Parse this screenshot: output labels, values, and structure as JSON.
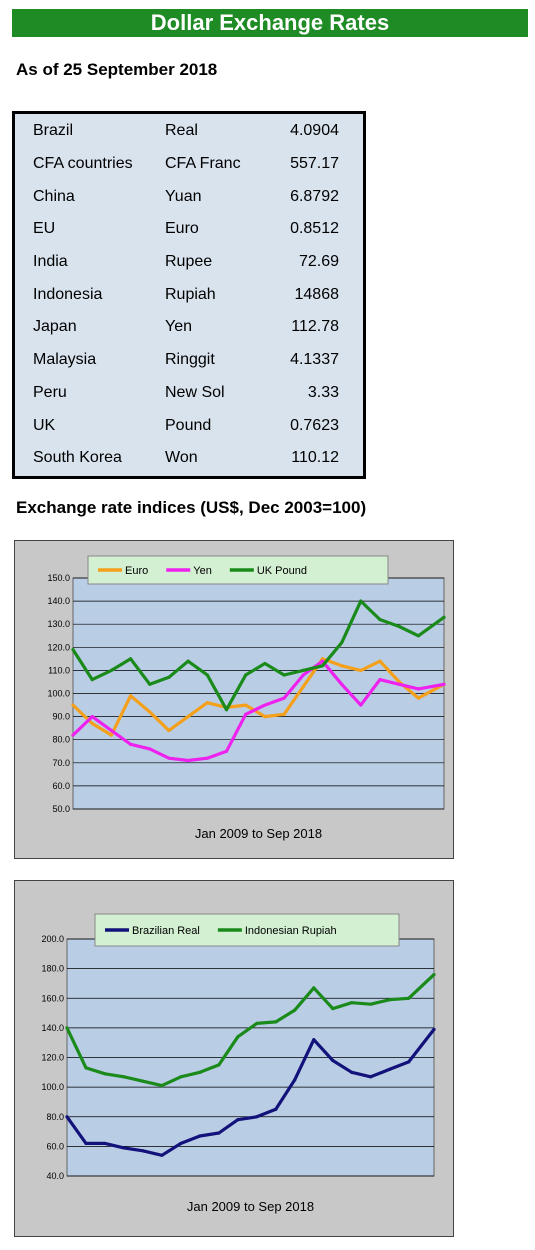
{
  "header": {
    "title": "Dollar Exchange Rates",
    "as_of": "As of 25 September 2018"
  },
  "rates": [
    {
      "country": "Brazil",
      "currency": "Real",
      "rate": "4.0904"
    },
    {
      "country": "CFA countries",
      "currency": "CFA Franc",
      "rate": "557.17"
    },
    {
      "country": "China",
      "currency": "Yuan",
      "rate": "6.8792"
    },
    {
      "country": "EU",
      "currency": "Euro",
      "rate": "0.8512"
    },
    {
      "country": "India",
      "currency": "Rupee",
      "rate": "72.69"
    },
    {
      "country": "Indonesia",
      "currency": "Rupiah",
      "rate": "14868"
    },
    {
      "country": "Japan",
      "currency": "Yen",
      "rate": "112.78"
    },
    {
      "country": "Malaysia",
      "currency": "Ringgit",
      "rate": "4.1337"
    },
    {
      "country": "Peru",
      "currency": "New Sol",
      "rate": "3.33"
    },
    {
      "country": "UK",
      "currency": "Pound",
      "rate": "0.7623"
    },
    {
      "country": "South Korea",
      "currency": "Won",
      "rate": "110.12"
    }
  ],
  "section_title": "Exchange rate indices (US$, Dec 2003=100)",
  "chart_data": [
    {
      "type": "line",
      "xlabel": "Jan 2009  to Sep 2018",
      "ylim": [
        50,
        150
      ],
      "yticks": [
        "50.0",
        "60.0",
        "70.0",
        "80.0",
        "90.0",
        "100.0",
        "110.0",
        "120.0",
        "130.0",
        "140.0",
        "150.0"
      ],
      "grid": true,
      "legend_position": "top",
      "x_range": [
        "2009-01",
        "2018-09"
      ],
      "x": [
        "2009-01",
        "2009-07",
        "2010-01",
        "2010-07",
        "2011-01",
        "2011-07",
        "2012-01",
        "2012-07",
        "2013-01",
        "2013-07",
        "2014-01",
        "2014-07",
        "2015-01",
        "2015-07",
        "2016-01",
        "2016-07",
        "2017-01",
        "2017-07",
        "2018-01",
        "2018-09"
      ],
      "series": [
        {
          "name": "Euro",
          "color": "#f5a01a",
          "values": [
            95,
            87,
            82,
            99,
            92,
            84,
            90,
            96,
            94,
            95,
            90,
            91,
            103,
            115,
            112,
            110,
            114,
            105,
            98,
            104
          ]
        },
        {
          "name": "Yen",
          "color": "#ee22ee",
          "values": [
            82,
            90,
            84,
            78,
            76,
            72,
            71,
            72,
            75,
            91,
            95,
            98,
            108,
            114,
            104,
            95,
            106,
            104,
            102,
            104
          ]
        },
        {
          "name": "UK Pound",
          "color": "#1a8a1a",
          "values": [
            119,
            106,
            110,
            115,
            104,
            107,
            114,
            108,
            93,
            108,
            113,
            108,
            110,
            112,
            122,
            140,
            132,
            129,
            125,
            133
          ]
        }
      ]
    },
    {
      "type": "line",
      "xlabel": "Jan 2009  to Sep 2018",
      "ylim": [
        40,
        200
      ],
      "yticks": [
        "40.0",
        "60.0",
        "80.0",
        "100.0",
        "120.0",
        "140.0",
        "160.0",
        "180.0",
        "200.0"
      ],
      "grid": true,
      "legend_position": "top",
      "x_range": [
        "2009-01",
        "2018-09"
      ],
      "x": [
        "2009-01",
        "2009-07",
        "2010-01",
        "2010-07",
        "2011-01",
        "2011-07",
        "2012-01",
        "2012-07",
        "2013-01",
        "2013-07",
        "2014-01",
        "2014-07",
        "2015-01",
        "2015-07",
        "2016-01",
        "2016-07",
        "2017-01",
        "2017-07",
        "2018-01",
        "2018-09"
      ],
      "series": [
        {
          "name": "Brazilian Real",
          "color": "#12127a",
          "values": [
            80,
            62,
            62,
            59,
            57,
            54,
            62,
            67,
            69,
            78,
            80,
            85,
            105,
            132,
            118,
            110,
            107,
            112,
            117,
            139
          ]
        },
        {
          "name": "Indonesian Rupiah",
          "color": "#1a8a1a",
          "values": [
            140,
            113,
            109,
            107,
            104,
            101,
            107,
            110,
            115,
            134,
            143,
            144,
            152,
            167,
            153,
            157,
            156,
            159,
            160,
            176
          ]
        }
      ]
    }
  ]
}
